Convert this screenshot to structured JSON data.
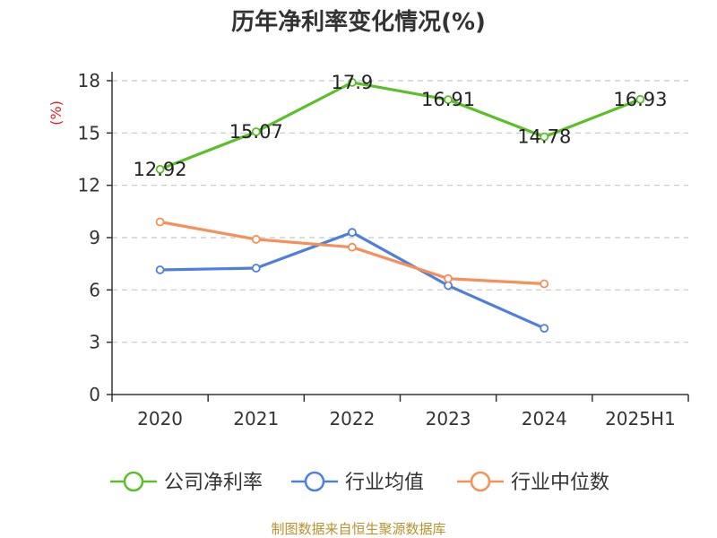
{
  "chart_data": {
    "type": "line",
    "title": "历年净利率变化情况(%)",
    "ylabel": "(%)",
    "xlabel": "",
    "categories": [
      "2020",
      "2021",
      "2022",
      "2023",
      "2024",
      "2025H1"
    ],
    "ylim": [
      0,
      18
    ],
    "yticks": [
      0,
      3,
      6,
      9,
      12,
      15,
      18
    ],
    "grid": "horizontal dashed",
    "legend_position": "bottom",
    "series": [
      {
        "name": "公司净利率",
        "color": "#5cbf2a",
        "values": [
          12.92,
          15.07,
          17.9,
          16.91,
          14.78,
          16.93
        ],
        "labels": [
          "12.92",
          "15.07",
          "17.9",
          "16.91",
          "14.78",
          "16.93"
        ]
      },
      {
        "name": "行业均值",
        "color": "#4f7fdc",
        "values": [
          7.15,
          7.25,
          9.3,
          6.25,
          3.8,
          null
        ]
      },
      {
        "name": "行业中位数",
        "color": "#f5905a",
        "values": [
          9.9,
          8.9,
          8.45,
          6.65,
          6.35,
          null
        ]
      }
    ],
    "source": "制图数据来自恒生聚源数据库"
  }
}
